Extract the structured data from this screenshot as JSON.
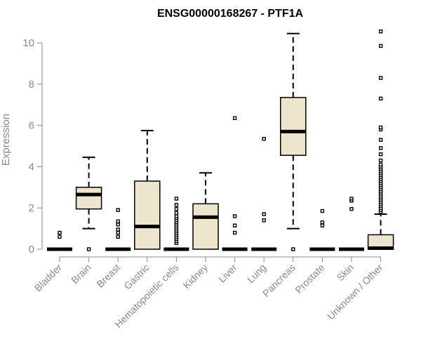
{
  "chart_data": {
    "type": "box",
    "title": "ENSG00000168267 - PTF1A",
    "ylabel": "Expression",
    "xlabel": "",
    "ylim": [
      0,
      10.6
    ],
    "yticks": [
      0,
      2,
      4,
      6,
      8,
      10
    ],
    "grid": false,
    "colors": {
      "box_fill": "#ede6cc",
      "stroke": "#000000",
      "axis": "#8a8a8a"
    },
    "categories": [
      "Bladder",
      "Brain",
      "Breast",
      "Gastric",
      "Hematopoietic cells",
      "Kidney",
      "Liver",
      "Lung",
      "Pancreas",
      "Prostate",
      "Skin",
      "Unknown / Other"
    ],
    "boxes": [
      {
        "category": "Bladder",
        "min": 0,
        "q1": 0,
        "median": 0,
        "q3": 0,
        "max": 0,
        "outliers": [
          0.6,
          0.8
        ]
      },
      {
        "category": "Brain",
        "min": 1.0,
        "q1": 1.95,
        "median": 2.65,
        "q3": 3.0,
        "max": 4.45,
        "outliers": [
          0
        ]
      },
      {
        "category": "Breast",
        "min": 0,
        "q1": 0,
        "median": 0,
        "q3": 0,
        "max": 0,
        "outliers": [
          0.6,
          0.8,
          0.95,
          1.2,
          1.35,
          1.9
        ]
      },
      {
        "category": "Gastric",
        "min": 0,
        "q1": 0,
        "median": 1.1,
        "q3": 3.3,
        "max": 5.75,
        "outliers": []
      },
      {
        "category": "Hematopoietic cells",
        "min": 0,
        "q1": 0,
        "median": 0,
        "q3": 0,
        "max": 0,
        "outliers": [
          0.3,
          0.4,
          0.5,
          0.6,
          0.7,
          0.8,
          0.9,
          1.0,
          1.1,
          1.2,
          1.3,
          1.4,
          1.5,
          1.6,
          1.75,
          1.95,
          2.15,
          2.45
        ]
      },
      {
        "category": "Kidney",
        "min": 0,
        "q1": 0,
        "median": 1.55,
        "q3": 2.2,
        "max": 3.7,
        "outliers": []
      },
      {
        "category": "Liver",
        "min": 0,
        "q1": 0,
        "median": 0,
        "q3": 0,
        "max": 0,
        "outliers": [
          0.8,
          1.15,
          1.6,
          6.35
        ]
      },
      {
        "category": "Lung",
        "min": 0,
        "q1": 0,
        "median": 0,
        "q3": 0,
        "max": 0,
        "outliers": [
          1.4,
          1.7,
          5.35
        ]
      },
      {
        "category": "Pancreas",
        "min": 1.0,
        "q1": 4.55,
        "median": 5.7,
        "q3": 7.35,
        "max": 10.45,
        "outliers": [
          0
        ]
      },
      {
        "category": "Prostate",
        "min": 0,
        "q1": 0,
        "median": 0,
        "q3": 0,
        "max": 0,
        "outliers": [
          1.15,
          1.3,
          1.85
        ]
      },
      {
        "category": "Skin",
        "min": 0,
        "q1": 0,
        "median": 0,
        "q3": 0,
        "max": 0,
        "outliers": [
          1.95,
          2.35,
          2.45
        ]
      },
      {
        "category": "Unknown / Other",
        "min": 0,
        "q1": 0,
        "median": 0.05,
        "q3": 0.7,
        "max": 1.7,
        "outliers": [
          1.8,
          1.9,
          2.0,
          2.1,
          2.2,
          2.3,
          2.4,
          2.5,
          2.6,
          2.7,
          2.8,
          2.9,
          3.0,
          3.1,
          3.2,
          3.3,
          3.4,
          3.5,
          3.6,
          3.7,
          3.8,
          3.9,
          4.0,
          4.1,
          4.3,
          4.6,
          4.9,
          5.3,
          5.8,
          5.9,
          7.3,
          8.3,
          9.85,
          10.55
        ]
      }
    ]
  }
}
